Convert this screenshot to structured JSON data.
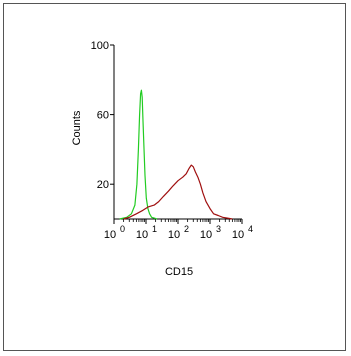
{
  "chart_data": {
    "type": "line",
    "title": "",
    "xlabel": "CD15",
    "ylabel": "Counts",
    "xscale": "log",
    "xlim": [
      1,
      10000
    ],
    "ylim": [
      0,
      100
    ],
    "yticks": [
      {
        "value": 20,
        "label": "20"
      },
      {
        "value": 60,
        "label": "60"
      },
      {
        "value": 100,
        "label": "100"
      }
    ],
    "xticks": [
      {
        "value": 1,
        "base": "10",
        "exp": "0"
      },
      {
        "value": 10,
        "base": "10",
        "exp": "1"
      },
      {
        "value": 100,
        "base": "10",
        "exp": "2"
      },
      {
        "value": 1000,
        "base": "10",
        "exp": "3"
      },
      {
        "value": 10000,
        "base": "10",
        "exp": "4"
      }
    ],
    "grid": false,
    "series": [
      {
        "color": "#22cc22",
        "x": [
          1.5,
          2.5,
          3.5,
          4.5,
          5.2,
          5.8,
          6.3,
          6.8,
          7.2,
          7.6,
          8.0,
          8.6,
          9.3,
          10.2,
          11.5,
          13,
          15,
          18,
          22
        ],
        "y": [
          0,
          1,
          3,
          8,
          20,
          40,
          60,
          72,
          74,
          70,
          58,
          42,
          25,
          12,
          6,
          3,
          1,
          0.5,
          0
        ]
      },
      {
        "color": "#a01010",
        "x": [
          2,
          3,
          5,
          8,
          12,
          18,
          25,
          35,
          50,
          70,
          100,
          140,
          180,
          220,
          260,
          300,
          350,
          420,
          500,
          600,
          750,
          1000,
          1300,
          1800,
          2500,
          3500,
          5000
        ],
        "y": [
          0,
          1,
          3,
          5,
          7,
          8,
          10,
          13,
          16,
          19,
          22,
          24,
          26,
          29,
          31,
          30,
          27,
          24,
          20,
          15,
          10,
          6,
          3,
          2,
          1,
          0.5,
          0
        ]
      }
    ]
  }
}
